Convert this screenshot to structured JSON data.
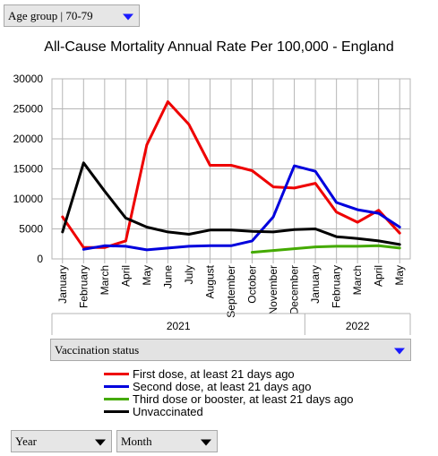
{
  "controls": {
    "age_group_label": "Age group | 70-79",
    "vaccination_label": "Vaccination status",
    "x_granularity_label": "Year",
    "x_subgranularity_label": "Month"
  },
  "colors": {
    "first_dose": "#ee0000",
    "second_dose": "#0000dd",
    "third_dose": "#44aa00",
    "unvaccinated": "#000000",
    "accent": "#1a1aff"
  },
  "chart_data": {
    "type": "line",
    "title": "All-Cause Mortality Annual Rate Per 100,000 - England",
    "xlabel": "",
    "ylabel": "",
    "ylim": [
      0,
      30000
    ],
    "yticks": [
      0,
      5000,
      10000,
      15000,
      20000,
      25000,
      30000
    ],
    "grid": true,
    "legend_position": "bottom",
    "categories": [
      "January",
      "February",
      "March",
      "April",
      "May",
      "June",
      "July",
      "August",
      "September",
      "October",
      "November",
      "December",
      "January",
      "February",
      "March",
      "April",
      "May"
    ],
    "years": [
      {
        "label": "2021",
        "start": 0,
        "end": 11
      },
      {
        "label": "2022",
        "start": 12,
        "end": 16
      }
    ],
    "series": [
      {
        "name": "First dose, at least 21 days ago",
        "color": "#ee0000",
        "values": [
          7000,
          1900,
          1900,
          3000,
          19000,
          26200,
          22400,
          15600,
          15600,
          14700,
          12000,
          11800,
          12600,
          7800,
          6100,
          8100,
          4300
        ]
      },
      {
        "name": "Second dose, at least 21 days ago",
        "color": "#0000dd",
        "values": [
          null,
          1600,
          2200,
          2100,
          1500,
          1800,
          2100,
          2200,
          2200,
          3000,
          7000,
          15500,
          14600,
          9400,
          8200,
          7600,
          5300
        ]
      },
      {
        "name": "Third dose or booster, at least 21 days ago",
        "color": "#44aa00",
        "values": [
          null,
          null,
          null,
          null,
          null,
          null,
          null,
          null,
          null,
          1100,
          1400,
          1700,
          2000,
          2100,
          2100,
          2200,
          1800
        ]
      },
      {
        "name": "Unvaccinated",
        "color": "#000000",
        "values": [
          4500,
          16000,
          11300,
          6800,
          5300,
          4500,
          4100,
          4800,
          4800,
          4600,
          4500,
          4900,
          5000,
          3700,
          3400,
          3000,
          2400
        ]
      }
    ]
  }
}
